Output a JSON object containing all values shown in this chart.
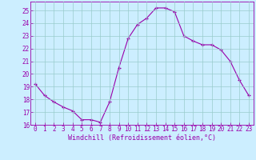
{
  "x": [
    0,
    1,
    2,
    3,
    4,
    5,
    6,
    7,
    8,
    9,
    10,
    11,
    12,
    13,
    14,
    15,
    16,
    17,
    18,
    19,
    20,
    21,
    22,
    23
  ],
  "y": [
    19.2,
    18.3,
    17.8,
    17.4,
    17.1,
    16.4,
    16.4,
    16.2,
    17.8,
    20.5,
    22.8,
    23.9,
    24.4,
    25.2,
    25.2,
    24.9,
    23.0,
    22.6,
    22.3,
    22.3,
    21.9,
    21.0,
    19.5,
    18.3
  ],
  "line_color": "#9900aa",
  "marker": "+",
  "bg_color": "#cceeff",
  "grid_color": "#99cccc",
  "xlabel": "Windchill (Refroidissement éolien,°C)",
  "xlim": [
    -0.5,
    23.5
  ],
  "ylim": [
    16,
    25.7
  ],
  "yticks": [
    16,
    17,
    18,
    19,
    20,
    21,
    22,
    23,
    24,
    25
  ],
  "xticks": [
    0,
    1,
    2,
    3,
    4,
    5,
    6,
    7,
    8,
    9,
    10,
    11,
    12,
    13,
    14,
    15,
    16,
    17,
    18,
    19,
    20,
    21,
    22,
    23
  ],
  "tick_color": "#9900aa",
  "spine_color": "#9900aa",
  "text_color": "#9900aa",
  "font": "monospace",
  "title_fontsize": 6,
  "label_fontsize": 6,
  "tick_fontsize": 5.5
}
